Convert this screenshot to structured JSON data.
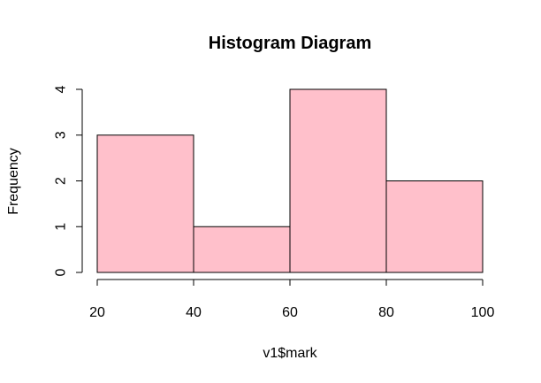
{
  "chart_data": {
    "type": "bar",
    "title": "Histogram Diagram",
    "xlabel": "v1$mark",
    "ylabel": "Frequency",
    "bins": [
      {
        "from": 20,
        "to": 40,
        "count": 3
      },
      {
        "from": 40,
        "to": 60,
        "count": 1
      },
      {
        "from": 60,
        "to": 80,
        "count": 4
      },
      {
        "from": 80,
        "to": 100,
        "count": 2
      }
    ],
    "xlim": [
      20,
      100
    ],
    "ylim": [
      0,
      4
    ],
    "xticks": [
      20,
      40,
      60,
      80,
      100
    ],
    "yticks": [
      0,
      1,
      2,
      3,
      4
    ],
    "bar_color": "#FFC0CB",
    "grid": false,
    "legend": "none"
  }
}
